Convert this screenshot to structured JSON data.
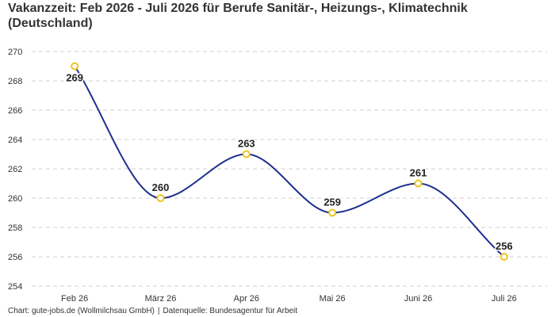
{
  "chart_data": {
    "type": "line",
    "title": "Vakanzzeit: Feb 2026 - Juli 2026 für Berufe Sanitär-, Heizungs-, Klimatechnik (Deutschland)",
    "xlabel": "",
    "ylabel": "",
    "categories": [
      "Feb 26",
      "März 26",
      "Apr 26",
      "Mai 26",
      "Juni 26",
      "Juli 26"
    ],
    "series": [
      {
        "values": [
          269,
          260,
          263,
          259,
          261,
          256
        ]
      }
    ],
    "ylim": [
      254,
      270
    ],
    "yticks": [
      254,
      256,
      258,
      260,
      262,
      264,
      266,
      268,
      270
    ],
    "grid": true,
    "curve": "smooth",
    "line_color": "#1f2f8f",
    "marker_color": "#f0c419",
    "grid_color": "#cfcfcf",
    "text_color": "#333333"
  },
  "footer": {
    "chart_credit": "Chart: gute-jobs.de (Wollmilchsau GmbH)",
    "separator": "|",
    "data_source": "Datenquelle: Bundesagentur für Arbeit"
  }
}
